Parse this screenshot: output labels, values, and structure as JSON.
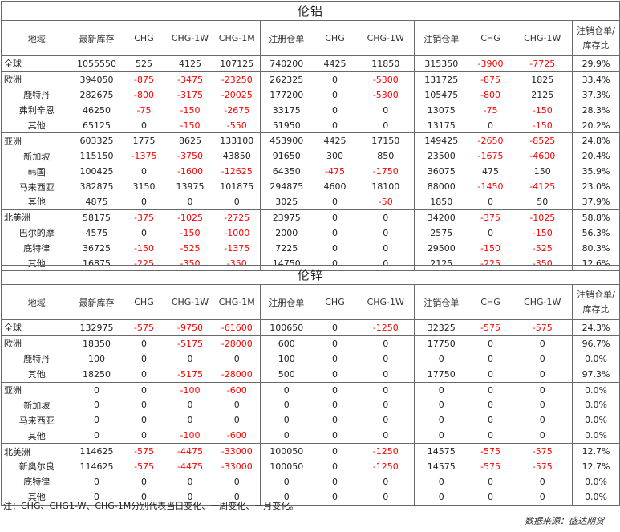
{
  "columns": [
    "地域",
    "最新库存",
    "CHG",
    "CHG-1W",
    "CHG-1M",
    "注册仓单",
    "CHG",
    "CHG-1W",
    "注销仓单",
    "CHG",
    "CHG-1W",
    "注销仓单/库存比"
  ],
  "tables": [
    {
      "title": "伦铝",
      "rows": [
        {
          "cells": [
            "全球",
            "1055550",
            "525",
            "4125",
            "107125",
            "740200",
            "4425",
            "11850",
            "315350",
            "-3900",
            "-7725",
            "29.9%"
          ],
          "top": true
        },
        {
          "cells": [
            "欧洲",
            "394050",
            "-875",
            "-3475",
            "-23250",
            "262325",
            "0",
            "-5300",
            "131725",
            "-875",
            "1825",
            "33.4%"
          ],
          "top": true
        },
        {
          "cells": [
            "鹿特丹",
            "282675",
            "-800",
            "-3175",
            "-20025",
            "177200",
            "0",
            "-5300",
            "105475",
            "-800",
            "2125",
            "37.3%"
          ],
          "sub": true
        },
        {
          "cells": [
            "弗利辛恩",
            "46250",
            "-75",
            "-150",
            "-2675",
            "33175",
            "0",
            "0",
            "13075",
            "-75",
            "-150",
            "28.3%"
          ],
          "sub": true
        },
        {
          "cells": [
            "其他",
            "65125",
            "0",
            "-150",
            "-550",
            "51950",
            "0",
            "0",
            "13175",
            "0",
            "-150",
            "20.2%"
          ],
          "sub": true
        },
        {
          "cells": [
            "亚洲",
            "603325",
            "1775",
            "8625",
            "133100",
            "453900",
            "4425",
            "17150",
            "149425",
            "-2650",
            "-8525",
            "24.8%"
          ],
          "top": true
        },
        {
          "cells": [
            "新加坡",
            "115150",
            "-1375",
            "-3750",
            "43850",
            "91650",
            "300",
            "850",
            "23500",
            "-1675",
            "-4600",
            "20.4%"
          ],
          "sub": true
        },
        {
          "cells": [
            "韩国",
            "100425",
            "0",
            "-1600",
            "-12625",
            "64350",
            "-475",
            "-1750",
            "36075",
            "475",
            "150",
            "35.9%"
          ],
          "sub": true
        },
        {
          "cells": [
            "马来西亚",
            "382875",
            "3150",
            "13975",
            "101875",
            "294875",
            "4600",
            "18100",
            "88000",
            "-1450",
            "-4125",
            "23.0%"
          ],
          "sub": true
        },
        {
          "cells": [
            "其他",
            "4875",
            "0",
            "0",
            "0",
            "3025",
            "0",
            "-50",
            "1850",
            "0",
            "50",
            "37.9%"
          ],
          "sub": true
        },
        {
          "cells": [
            "北美洲",
            "58175",
            "-375",
            "-1025",
            "-2725",
            "23975",
            "0",
            "0",
            "34200",
            "-375",
            "-1025",
            "58.8%"
          ],
          "top": true
        },
        {
          "cells": [
            "巴尔的摩",
            "4575",
            "0",
            "-150",
            "-1000",
            "2000",
            "0",
            "0",
            "2575",
            "0",
            "-150",
            "56.3%"
          ],
          "sub": true
        },
        {
          "cells": [
            "底特律",
            "36725",
            "-150",
            "-525",
            "-1375",
            "7225",
            "0",
            "0",
            "29500",
            "-150",
            "-525",
            "80.3%"
          ],
          "sub": true
        },
        {
          "cells": [
            "其他",
            "16875",
            "-225",
            "-350",
            "-350",
            "14750",
            "0",
            "0",
            "2125",
            "-225",
            "-350",
            "12.6%"
          ],
          "sub": true
        }
      ]
    },
    {
      "title": "伦锌",
      "rows": [
        {
          "cells": [
            "全球",
            "132975",
            "-575",
            "-9750",
            "-61600",
            "100650",
            "0",
            "-1250",
            "32325",
            "-575",
            "-575",
            "24.3%"
          ],
          "top": true
        },
        {
          "cells": [
            "欧洲",
            "18350",
            "0",
            "-5175",
            "-28000",
            "600",
            "0",
            "0",
            "17750",
            "0",
            "0",
            "96.7%"
          ],
          "top": true
        },
        {
          "cells": [
            "鹿特丹",
            "100",
            "0",
            "0",
            "0",
            "100",
            "0",
            "0",
            "0",
            "0",
            "0",
            "0.0%"
          ],
          "sub": true
        },
        {
          "cells": [
            "其他",
            "18250",
            "0",
            "-5175",
            "-28000",
            "500",
            "0",
            "0",
            "17750",
            "0",
            "0",
            "97.3%"
          ],
          "sub": true
        },
        {
          "cells": [
            "亚洲",
            "0",
            "0",
            "-100",
            "-600",
            "0",
            "0",
            "0",
            "0",
            "0",
            "0",
            "0.0%"
          ],
          "top": true
        },
        {
          "cells": [
            "新加坡",
            "0",
            "0",
            "0",
            "0",
            "0",
            "0",
            "0",
            "0",
            "0",
            "0",
            "0.0%"
          ],
          "sub": true
        },
        {
          "cells": [
            "马来西亚",
            "0",
            "0",
            "0",
            "0",
            "0",
            "0",
            "0",
            "0",
            "0",
            "0",
            "0.0%"
          ],
          "sub": true
        },
        {
          "cells": [
            "其他",
            "0",
            "0",
            "-100",
            "-600",
            "0",
            "0",
            "0",
            "0",
            "0",
            "0",
            "0.0%"
          ],
          "sub": true
        },
        {
          "cells": [
            "北美洲",
            "114625",
            "-575",
            "-4475",
            "-33000",
            "100050",
            "0",
            "-1250",
            "14575",
            "-575",
            "-575",
            "12.7%"
          ],
          "top": true
        },
        {
          "cells": [
            "新奥尔良",
            "114625",
            "-575",
            "-4475",
            "-33000",
            "100050",
            "0",
            "-1250",
            "14575",
            "-575",
            "-575",
            "12.7%"
          ],
          "sub": true
        },
        {
          "cells": [
            "底特律",
            "0",
            "0",
            "0",
            "0",
            "0",
            "0",
            "0",
            "0",
            "0",
            "0",
            "0.0%"
          ],
          "sub": true
        },
        {
          "cells": [
            "其他",
            "0",
            "0",
            "0",
            "0",
            "0",
            "0",
            "0",
            "0",
            "0",
            "0",
            "0.0%"
          ],
          "sub": true
        }
      ]
    }
  ],
  "note": "注：CHG、CHG1-W、CHG-1M分别代表当日变化、一周变化、一月变化。",
  "source": "数据来源：盛达期货",
  "colors": {
    "negative": "#ff0000",
    "border": "#6a6a6a",
    "text": "#222222"
  }
}
